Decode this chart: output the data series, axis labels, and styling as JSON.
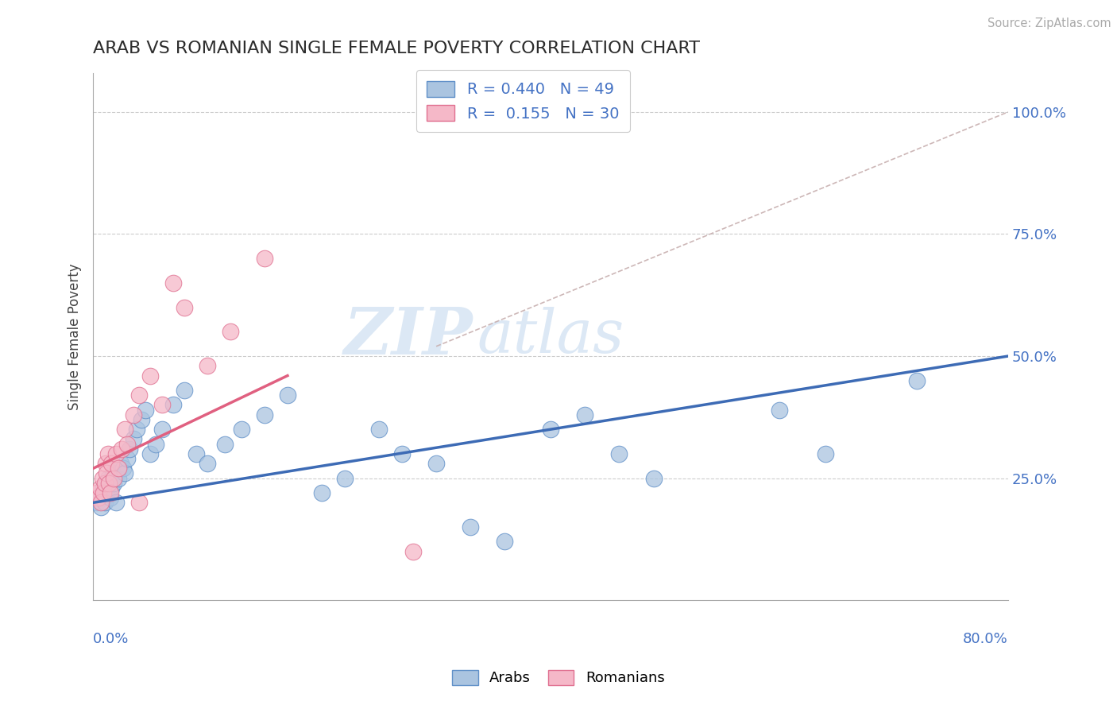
{
  "title": "ARAB VS ROMANIAN SINGLE FEMALE POVERTY CORRELATION CHART",
  "source_text": "Source: ZipAtlas.com",
  "ylabel": "Single Female Poverty",
  "arab_R": 0.44,
  "arab_N": 49,
  "romanian_R": 0.155,
  "romanian_N": 30,
  "arab_color": "#aac4e0",
  "arab_edge_color": "#6090c8",
  "arab_line_color": "#3d6bb5",
  "romanian_color": "#f5b8c8",
  "romanian_edge_color": "#e07090",
  "romanian_line_color": "#e06080",
  "ref_line_color": "#c8b0b0",
  "grid_color": "#cccccc",
  "title_color": "#2d2d2d",
  "axis_label_color": "#4472c4",
  "watermark_color": "#dce8f5",
  "background_color": "#ffffff",
  "xlim": [
    0.0,
    0.8
  ],
  "ylim": [
    0.0,
    1.08
  ],
  "ytick_vals": [
    0.25,
    0.5,
    0.75,
    1.0
  ],
  "ytick_labels": [
    "25.0%",
    "50.0%",
    "75.0%",
    "100.0%"
  ],
  "arab_line_x0": 0.0,
  "arab_line_y0": 0.2,
  "arab_line_x1": 0.8,
  "arab_line_y1": 0.5,
  "romanian_line_x0": 0.0,
  "romanian_line_y0": 0.27,
  "romanian_line_x1": 0.17,
  "romanian_line_y1": 0.46,
  "ref_line_x0": 0.3,
  "ref_line_y0": 0.52,
  "ref_line_x1": 0.8,
  "ref_line_y1": 1.0,
  "arab_x": [
    0.003,
    0.005,
    0.007,
    0.008,
    0.009,
    0.01,
    0.011,
    0.012,
    0.013,
    0.015,
    0.016,
    0.017,
    0.018,
    0.02,
    0.022,
    0.024,
    0.026,
    0.028,
    0.03,
    0.032,
    0.035,
    0.038,
    0.042,
    0.046,
    0.05,
    0.055,
    0.06,
    0.07,
    0.08,
    0.09,
    0.1,
    0.115,
    0.13,
    0.15,
    0.17,
    0.2,
    0.22,
    0.25,
    0.27,
    0.3,
    0.33,
    0.36,
    0.4,
    0.43,
    0.46,
    0.49,
    0.6,
    0.64,
    0.72
  ],
  "arab_y": [
    0.2,
    0.21,
    0.19,
    0.22,
    0.23,
    0.2,
    0.24,
    0.22,
    0.25,
    0.21,
    0.23,
    0.26,
    0.24,
    0.2,
    0.25,
    0.28,
    0.27,
    0.26,
    0.29,
    0.31,
    0.33,
    0.35,
    0.37,
    0.39,
    0.3,
    0.32,
    0.35,
    0.4,
    0.43,
    0.3,
    0.28,
    0.32,
    0.35,
    0.38,
    0.42,
    0.22,
    0.25,
    0.35,
    0.3,
    0.28,
    0.15,
    0.12,
    0.35,
    0.38,
    0.3,
    0.25,
    0.39,
    0.3,
    0.45
  ],
  "romanian_x": [
    0.003,
    0.005,
    0.006,
    0.007,
    0.008,
    0.009,
    0.01,
    0.011,
    0.012,
    0.013,
    0.014,
    0.015,
    0.016,
    0.018,
    0.02,
    0.022,
    0.025,
    0.028,
    0.03,
    0.035,
    0.04,
    0.05,
    0.06,
    0.07,
    0.08,
    0.1,
    0.12,
    0.15,
    0.04,
    0.28
  ],
  "romanian_y": [
    0.22,
    0.21,
    0.23,
    0.2,
    0.25,
    0.22,
    0.24,
    0.28,
    0.26,
    0.3,
    0.24,
    0.22,
    0.28,
    0.25,
    0.3,
    0.27,
    0.31,
    0.35,
    0.32,
    0.38,
    0.42,
    0.46,
    0.4,
    0.65,
    0.6,
    0.48,
    0.55,
    0.7,
    0.2,
    0.1
  ]
}
